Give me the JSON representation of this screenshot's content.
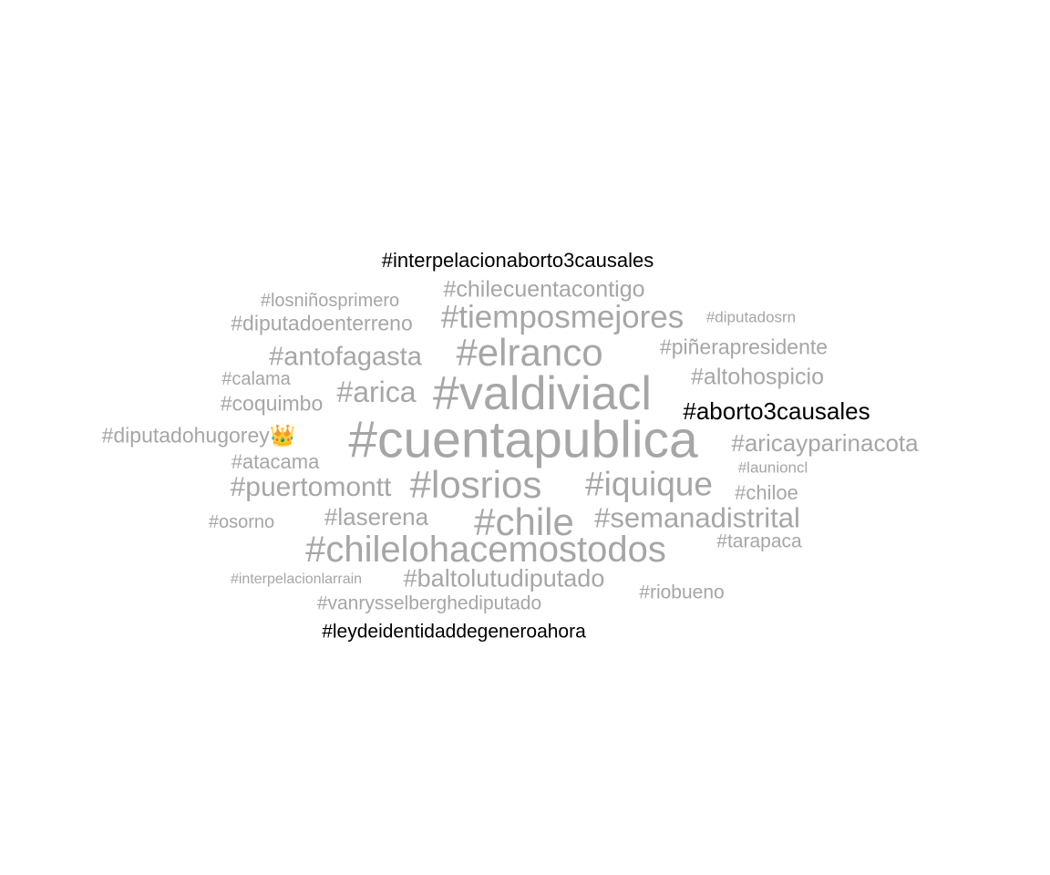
{
  "word_cloud": {
    "colors": {
      "default": "#a6a6a6",
      "highlight": "#000000"
    },
    "words": [
      {
        "text": "#interpelacionaborto3causales",
        "highlight": true
      },
      {
        "text": "#chilecuentacontigo",
        "highlight": false
      },
      {
        "text": "#losniñosprimero",
        "highlight": false
      },
      {
        "text": "#diputadoenterreno",
        "highlight": false
      },
      {
        "text": "#tiemposmejores",
        "highlight": false
      },
      {
        "text": "#diputadosrn",
        "highlight": false
      },
      {
        "text": "#antofagasta",
        "highlight": false
      },
      {
        "text": "#elranco",
        "highlight": false
      },
      {
        "text": "#piñerapresidente",
        "highlight": false
      },
      {
        "text": "#calama",
        "highlight": false
      },
      {
        "text": "#altohospicio",
        "highlight": false
      },
      {
        "text": "#arica",
        "highlight": false
      },
      {
        "text": "#valdiviacl",
        "highlight": false
      },
      {
        "text": "#coquimbo",
        "highlight": false
      },
      {
        "text": "#aborto3causales",
        "highlight": true
      },
      {
        "text": "#diputadohugorey👑",
        "highlight": false
      },
      {
        "text": "#cuentapublica",
        "highlight": false
      },
      {
        "text": "#aricayparinacota",
        "highlight": false
      },
      {
        "text": "#atacama",
        "highlight": false
      },
      {
        "text": "#launioncl",
        "highlight": false
      },
      {
        "text": "#puertomontt",
        "highlight": false
      },
      {
        "text": "#losrios",
        "highlight": false
      },
      {
        "text": "#iquique",
        "highlight": false
      },
      {
        "text": "#chiloe",
        "highlight": false
      },
      {
        "text": "#osorno",
        "highlight": false
      },
      {
        "text": "#laserena",
        "highlight": false
      },
      {
        "text": "#chile",
        "highlight": false
      },
      {
        "text": "#semanadistrital",
        "highlight": false
      },
      {
        "text": "#chilelohacemostodos",
        "highlight": false
      },
      {
        "text": "#tarapaca",
        "highlight": false
      },
      {
        "text": "#interpelacionlarrain",
        "highlight": false
      },
      {
        "text": "#baltolutudiputado",
        "highlight": false
      },
      {
        "text": "#riobueno",
        "highlight": false
      },
      {
        "text": "#vanrysselberghediputado",
        "highlight": false
      },
      {
        "text": "#leydeidentidaddegeneroahora",
        "highlight": true
      }
    ]
  }
}
